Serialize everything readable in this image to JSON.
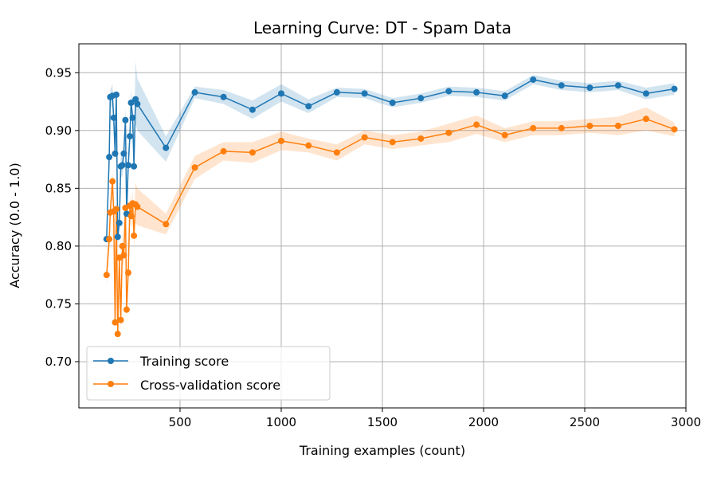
{
  "chart_data": {
    "type": "line",
    "title": "Learning Curve: DT - Spam Data",
    "xlabel": "Training examples (count)",
    "ylabel": "Accuracy (0.0 - 1.0)",
    "xlim": [
      0,
      3000
    ],
    "ylim": [
      0.66,
      0.975
    ],
    "xticks": [
      500,
      1000,
      1500,
      2000,
      2500,
      3000
    ],
    "yticks": [
      0.7,
      0.75,
      0.8,
      0.85,
      0.9,
      0.95
    ],
    "xtick_labels": [
      "500",
      "1000",
      "1500",
      "2000",
      "2500",
      "3000"
    ],
    "ytick_labels": [
      "0.70",
      "0.75",
      "0.80",
      "0.85",
      "0.90",
      "0.95"
    ],
    "grid": true,
    "legend_position": "lower-left",
    "series": [
      {
        "name": "Training score",
        "color": "#1f77b4",
        "fill_color": "#1f77b4",
        "points": [
          {
            "x": 137,
            "y": 0.806,
            "lo": 0.795,
            "hi": 0.815
          },
          {
            "x": 150,
            "y": 0.877,
            "lo": 0.865,
            "hi": 0.89
          },
          {
            "x": 155,
            "y": 0.929,
            "lo": 0.92,
            "hi": 0.935
          },
          {
            "x": 166,
            "y": 0.93,
            "lo": 0.92,
            "hi": 0.94
          },
          {
            "x": 172,
            "y": 0.911,
            "lo": 0.9,
            "hi": 0.92
          },
          {
            "x": 179,
            "y": 0.88,
            "lo": 0.87,
            "hi": 0.89
          },
          {
            "x": 185,
            "y": 0.931,
            "lo": 0.92,
            "hi": 0.94
          },
          {
            "x": 192,
            "y": 0.808,
            "lo": 0.8,
            "hi": 0.815
          },
          {
            "x": 200,
            "y": 0.82,
            "lo": 0.81,
            "hi": 0.83
          },
          {
            "x": 207,
            "y": 0.869,
            "lo": 0.86,
            "hi": 0.88
          },
          {
            "x": 215,
            "y": 0.87,
            "lo": 0.86,
            "hi": 0.88
          },
          {
            "x": 222,
            "y": 0.88,
            "lo": 0.87,
            "hi": 0.89
          },
          {
            "x": 230,
            "y": 0.909,
            "lo": 0.9,
            "hi": 0.92
          },
          {
            "x": 236,
            "y": 0.828,
            "lo": 0.82,
            "hi": 0.835
          },
          {
            "x": 244,
            "y": 0.87,
            "lo": 0.86,
            "hi": 0.88
          },
          {
            "x": 252,
            "y": 0.895,
            "lo": 0.885,
            "hi": 0.905
          },
          {
            "x": 258,
            "y": 0.924,
            "lo": 0.915,
            "hi": 0.935
          },
          {
            "x": 266,
            "y": 0.911,
            "lo": 0.9,
            "hi": 0.92
          },
          {
            "x": 272,
            "y": 0.869,
            "lo": 0.86,
            "hi": 0.88
          },
          {
            "x": 280,
            "y": 0.927,
            "lo": 0.905,
            "hi": 0.96
          },
          {
            "x": 289,
            "y": 0.923,
            "lo": 0.9,
            "hi": 0.945
          },
          {
            "x": 430,
            "y": 0.885,
            "lo": 0.873,
            "hi": 0.895
          },
          {
            "x": 573,
            "y": 0.933,
            "lo": 0.928,
            "hi": 0.938
          },
          {
            "x": 715,
            "y": 0.929,
            "lo": 0.923,
            "hi": 0.935
          },
          {
            "x": 858,
            "y": 0.918,
            "lo": 0.91,
            "hi": 0.926
          },
          {
            "x": 1000,
            "y": 0.932,
            "lo": 0.925,
            "hi": 0.94
          },
          {
            "x": 1135,
            "y": 0.921,
            "lo": 0.915,
            "hi": 0.927
          },
          {
            "x": 1275,
            "y": 0.933,
            "lo": 0.929,
            "hi": 0.937
          },
          {
            "x": 1412,
            "y": 0.932,
            "lo": 0.928,
            "hi": 0.936
          },
          {
            "x": 1550,
            "y": 0.924,
            "lo": 0.92,
            "hi": 0.928
          },
          {
            "x": 1690,
            "y": 0.928,
            "lo": 0.924,
            "hi": 0.932
          },
          {
            "x": 1828,
            "y": 0.934,
            "lo": 0.93,
            "hi": 0.938
          },
          {
            "x": 1965,
            "y": 0.933,
            "lo": 0.929,
            "hi": 0.937
          },
          {
            "x": 2105,
            "y": 0.93,
            "lo": 0.926,
            "hi": 0.934
          },
          {
            "x": 2245,
            "y": 0.944,
            "lo": 0.94,
            "hi": 0.948
          },
          {
            "x": 2385,
            "y": 0.939,
            "lo": 0.935,
            "hi": 0.943
          },
          {
            "x": 2525,
            "y": 0.937,
            "lo": 0.933,
            "hi": 0.941
          },
          {
            "x": 2665,
            "y": 0.939,
            "lo": 0.935,
            "hi": 0.943
          },
          {
            "x": 2803,
            "y": 0.932,
            "lo": 0.927,
            "hi": 0.937
          },
          {
            "x": 2943,
            "y": 0.936,
            "lo": 0.931,
            "hi": 0.941
          }
        ]
      },
      {
        "name": "Cross-validation score",
        "color": "#ff7f0e",
        "fill_color": "#ff7f0e",
        "points": [
          {
            "x": 137,
            "y": 0.775,
            "lo": 0.765,
            "hi": 0.785
          },
          {
            "x": 150,
            "y": 0.806,
            "lo": 0.795,
            "hi": 0.815
          },
          {
            "x": 155,
            "y": 0.829,
            "lo": 0.82,
            "hi": 0.84
          },
          {
            "x": 166,
            "y": 0.856,
            "lo": 0.845,
            "hi": 0.865
          },
          {
            "x": 172,
            "y": 0.83,
            "lo": 0.82,
            "hi": 0.84
          },
          {
            "x": 179,
            "y": 0.734,
            "lo": 0.725,
            "hi": 0.745
          },
          {
            "x": 185,
            "y": 0.832,
            "lo": 0.82,
            "hi": 0.84
          },
          {
            "x": 192,
            "y": 0.724,
            "lo": 0.715,
            "hi": 0.735
          },
          {
            "x": 200,
            "y": 0.79,
            "lo": 0.78,
            "hi": 0.8
          },
          {
            "x": 207,
            "y": 0.736,
            "lo": 0.725,
            "hi": 0.745
          },
          {
            "x": 215,
            "y": 0.8,
            "lo": 0.79,
            "hi": 0.81
          },
          {
            "x": 222,
            "y": 0.792,
            "lo": 0.78,
            "hi": 0.8
          },
          {
            "x": 230,
            "y": 0.833,
            "lo": 0.825,
            "hi": 0.84
          },
          {
            "x": 236,
            "y": 0.745,
            "lo": 0.735,
            "hi": 0.755
          },
          {
            "x": 244,
            "y": 0.777,
            "lo": 0.767,
            "hi": 0.787
          },
          {
            "x": 252,
            "y": 0.835,
            "lo": 0.825,
            "hi": 0.845
          },
          {
            "x": 258,
            "y": 0.826,
            "lo": 0.815,
            "hi": 0.835
          },
          {
            "x": 266,
            "y": 0.837,
            "lo": 0.827,
            "hi": 0.847
          },
          {
            "x": 272,
            "y": 0.809,
            "lo": 0.8,
            "hi": 0.82
          },
          {
            "x": 280,
            "y": 0.836,
            "lo": 0.82,
            "hi": 0.855
          },
          {
            "x": 289,
            "y": 0.834,
            "lo": 0.818,
            "hi": 0.85
          },
          {
            "x": 430,
            "y": 0.819,
            "lo": 0.81,
            "hi": 0.828
          },
          {
            "x": 573,
            "y": 0.868,
            "lo": 0.858,
            "hi": 0.878
          },
          {
            "x": 715,
            "y": 0.882,
            "lo": 0.874,
            "hi": 0.89
          },
          {
            "x": 858,
            "y": 0.881,
            "lo": 0.872,
            "hi": 0.89
          },
          {
            "x": 1000,
            "y": 0.891,
            "lo": 0.883,
            "hi": 0.899
          },
          {
            "x": 1135,
            "y": 0.887,
            "lo": 0.881,
            "hi": 0.893
          },
          {
            "x": 1275,
            "y": 0.881,
            "lo": 0.874,
            "hi": 0.888
          },
          {
            "x": 1412,
            "y": 0.894,
            "lo": 0.888,
            "hi": 0.9
          },
          {
            "x": 1550,
            "y": 0.89,
            "lo": 0.884,
            "hi": 0.896
          },
          {
            "x": 1690,
            "y": 0.893,
            "lo": 0.887,
            "hi": 0.899
          },
          {
            "x": 1828,
            "y": 0.898,
            "lo": 0.89,
            "hi": 0.906
          },
          {
            "x": 1965,
            "y": 0.905,
            "lo": 0.897,
            "hi": 0.913
          },
          {
            "x": 2105,
            "y": 0.896,
            "lo": 0.89,
            "hi": 0.902
          },
          {
            "x": 2245,
            "y": 0.902,
            "lo": 0.896,
            "hi": 0.908
          },
          {
            "x": 2385,
            "y": 0.902,
            "lo": 0.896,
            "hi": 0.908
          },
          {
            "x": 2525,
            "y": 0.904,
            "lo": 0.898,
            "hi": 0.91
          },
          {
            "x": 2665,
            "y": 0.904,
            "lo": 0.896,
            "hi": 0.912
          },
          {
            "x": 2803,
            "y": 0.91,
            "lo": 0.9,
            "hi": 0.92
          },
          {
            "x": 2943,
            "y": 0.901,
            "lo": 0.895,
            "hi": 0.907
          }
        ]
      }
    ]
  }
}
